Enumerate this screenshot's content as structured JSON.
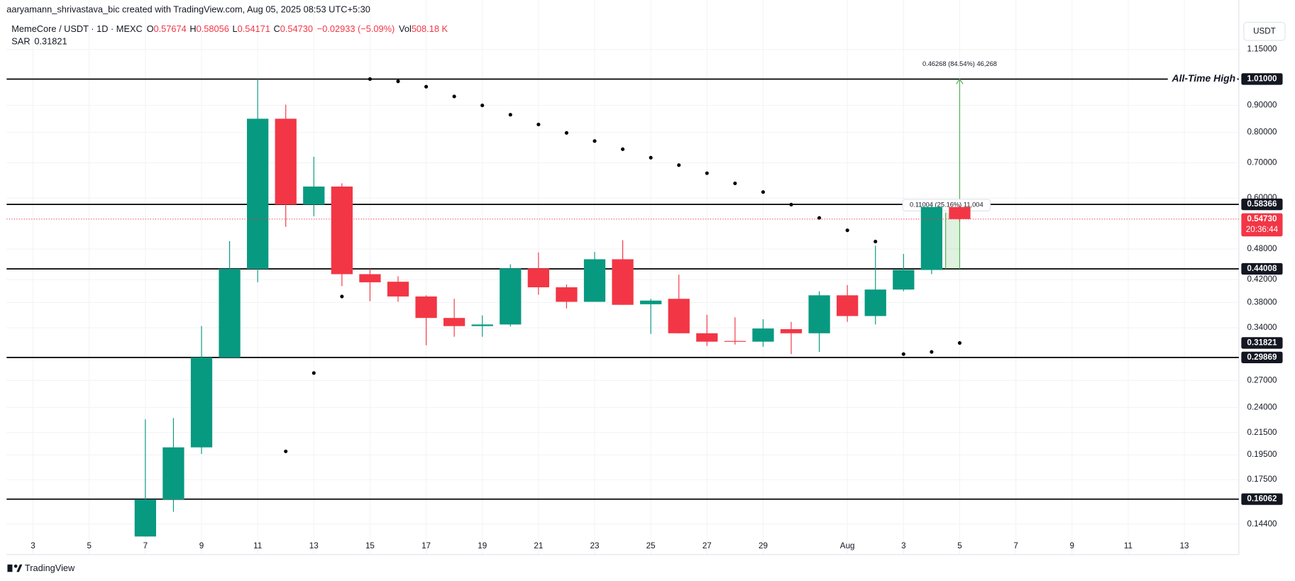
{
  "header": {
    "attribution": "aaryamann_shrivastava_bic created with TradingView.com, Aug 05, 2025 08:53 UTC+5:30",
    "symbol": "MemeCore / USDT · 1D · MEXC",
    "o": "O",
    "h": "H",
    "l": "L",
    "c": "C",
    "change": "−0.02933 (−5.09%)",
    "vol_label": "Vol",
    "vol": "508.18 K",
    "sar_label": "SAR",
    "currency": "USDT",
    "logo": "TradingView"
  },
  "chart_data": {
    "type": "candlestick",
    "log_scale": true,
    "up_color": "#089981",
    "down_color": "#f23645",
    "sar_color": "#000000",
    "categories": [
      "3",
      null,
      "5",
      null,
      "7",
      null,
      "9",
      null,
      "11",
      null,
      "13",
      null,
      "15",
      null,
      "17",
      null,
      "19",
      null,
      "21",
      null,
      "23",
      null,
      "25",
      null,
      "27",
      null,
      "29",
      null,
      null,
      "Aug",
      null,
      "3",
      null,
      "5",
      null,
      "7",
      null,
      "9",
      null,
      "11",
      null,
      "13",
      null
    ],
    "open": [
      null,
      null,
      null,
      null,
      0.1364,
      0.1604,
      0.2015,
      0.2987,
      0.4401,
      0.849,
      0.583,
      0.631,
      0.43,
      0.416,
      0.39,
      0.355,
      0.3426,
      0.345,
      0.441,
      0.406,
      0.381,
      0.459,
      0.377,
      0.386,
      0.332,
      0.321,
      0.32,
      0.338,
      0.332,
      0.392,
      0.358,
      0.402,
      0.438,
      0.57674,
      null,
      null,
      null,
      null,
      null,
      null,
      null,
      null,
      null
    ],
    "high": [
      null,
      null,
      null,
      null,
      0.2278,
      0.229,
      0.3426,
      0.497,
      1.01,
      0.903,
      0.719,
      0.64,
      0.44,
      0.426,
      0.392,
      0.386,
      0.359,
      0.449,
      0.473,
      0.411,
      0.474,
      0.499,
      0.386,
      0.429,
      0.36,
      0.356,
      0.353,
      0.349,
      0.399,
      0.41,
      0.487,
      0.47,
      0.58,
      0.58056,
      null,
      null,
      null,
      null,
      null,
      null,
      null,
      null,
      null
    ],
    "low": [
      null,
      null,
      null,
      null,
      0.1364,
      0.152,
      0.1957,
      0.2987,
      0.415,
      0.529,
      0.554,
      0.408,
      0.382,
      0.381,
      0.315,
      0.327,
      0.327,
      0.342,
      0.393,
      0.37,
      0.381,
      0.376,
      0.331,
      0.332,
      0.314,
      0.316,
      0.313,
      0.303,
      0.306,
      0.349,
      0.345,
      0.399,
      0.43,
      0.54171,
      null,
      null,
      null,
      null,
      null,
      null,
      null,
      null,
      null
    ],
    "close": [
      null,
      null,
      null,
      null,
      0.1604,
      0.2015,
      0.2987,
      0.4401,
      0.849,
      0.583,
      0.631,
      0.43,
      0.415,
      0.39,
      0.355,
      0.3426,
      0.345,
      0.441,
      0.406,
      0.381,
      0.459,
      0.376,
      0.383,
      0.332,
      0.32,
      0.32,
      0.339,
      0.332,
      0.392,
      0.358,
      0.402,
      0.438,
      0.577,
      0.5473,
      null,
      null,
      null,
      null,
      null,
      null,
      null,
      null,
      null
    ],
    "close_label": "0.54730",
    "countdown": "20:36:44",
    "sar": [
      null,
      null,
      null,
      null,
      null,
      null,
      null,
      null,
      null,
      0.198,
      0.279,
      0.39,
      1.01,
      1.0,
      0.977,
      0.936,
      0.9,
      0.864,
      0.828,
      0.798,
      0.77,
      0.743,
      0.716,
      0.693,
      0.669,
      0.64,
      0.616,
      0.583,
      0.55,
      0.521,
      0.496,
      0.303,
      0.306,
      0.31821,
      null,
      null,
      null,
      null,
      null,
      null,
      null,
      null,
      null
    ],
    "levels": [
      {
        "value": 1.01,
        "label": "1.01000"
      },
      0.58366,
      0.44008,
      0.29869,
      0.16062
    ],
    "annotation": "All-Time High",
    "measure_big": "0.46268 (84.54%) 46,268",
    "measure_small": "0.11004 (25.16%) 11,004",
    "ylim": [
      0.134,
      1.281
    ],
    "yticks": [
      {
        "value": 1.15,
        "label": "1.15000"
      },
      {
        "value": 0.9,
        "label": "0.90000"
      },
      {
        "value": 0.8,
        "label": "0.80000"
      },
      {
        "value": 0.7,
        "label": "0.70000"
      },
      {
        "value": 0.6,
        "label": "0.60000"
      },
      {
        "value": 0.48,
        "label": "0.48000"
      },
      {
        "value": 0.42,
        "label": "0.42000"
      },
      {
        "value": 0.38,
        "label": "0.38000"
      },
      {
        "value": 0.34,
        "label": "0.34000"
      },
      {
        "value": 0.27,
        "label": "0.27000"
      },
      {
        "value": 0.24,
        "label": "0.24000"
      },
      {
        "value": 0.215,
        "label": "0.21500"
      },
      {
        "value": 0.195,
        "label": "0.19500"
      },
      {
        "value": 0.175,
        "label": "0.17500"
      },
      {
        "value": 0.144,
        "label": "0.14400"
      }
    ]
  }
}
